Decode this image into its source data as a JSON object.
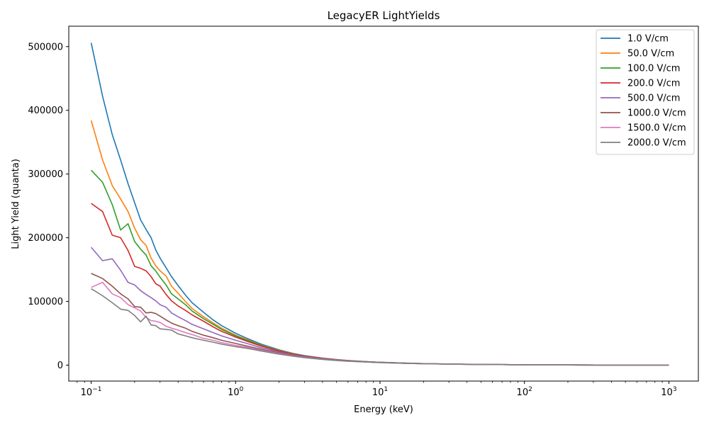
{
  "chart_data": {
    "type": "line",
    "title": "LegacyER LightYields",
    "xlabel": "Energy (keV)",
    "ylabel": "Light Yield (quanta)",
    "x_scale": "log",
    "xlim": [
      0.07,
      1600
    ],
    "ylim": [
      -25000,
      532000
    ],
    "y_ticks": [
      0,
      100000,
      200000,
      300000,
      400000,
      500000
    ],
    "y_tick_labels": [
      "0",
      "100000",
      "200000",
      "300000",
      "400000",
      "500000"
    ],
    "x_ticks": [
      0.1,
      1,
      10,
      100,
      1000
    ],
    "x_tick_labels": [
      {
        "base": "10",
        "exp": "−1"
      },
      {
        "base": "10",
        "exp": "0"
      },
      {
        "base": "10",
        "exp": "1"
      },
      {
        "base": "10",
        "exp": "2"
      },
      {
        "base": "10",
        "exp": "3"
      }
    ],
    "grid": false,
    "legend_position": "top-right",
    "x": [
      0.1,
      0.12,
      0.14,
      0.16,
      0.18,
      0.2,
      0.22,
      0.24,
      0.26,
      0.28,
      0.3,
      0.33,
      0.36,
      0.4,
      0.45,
      0.5,
      0.6,
      0.7,
      0.8,
      1,
      1.2,
      1.5,
      2,
      2.5,
      3,
      4,
      5,
      6,
      8,
      10,
      15,
      20,
      30,
      50,
      100,
      200,
      500,
      1000
    ],
    "series": [
      {
        "name": "1.0 V/cm",
        "color": "#1f77b4",
        "values": [
          506000,
          422000,
          362000,
          322000,
          285000,
          255000,
          228000,
          213000,
          200000,
          181000,
          168000,
          153000,
          139000,
          125000,
          110000,
          98000,
          83000,
          71000,
          62000,
          50000,
          42000,
          33000,
          24000,
          18500,
          15000,
          11000,
          8800,
          7300,
          5600,
          4600,
          3200,
          2500,
          1800,
          1200,
          700,
          380,
          180,
          100
        ]
      },
      {
        "name": "50.0 V/cm",
        "color": "#ff7f0e",
        "values": [
          384000,
          322000,
          282000,
          261000,
          241000,
          215000,
          197000,
          188000,
          168000,
          156000,
          148000,
          140000,
          124000,
          113000,
          100000,
          89000,
          76000,
          66000,
          58000,
          47000,
          40000,
          31500,
          23000,
          18000,
          14500,
          10800,
          8600,
          7100,
          5500,
          4500,
          3100,
          2450,
          1750,
          1150,
          680,
          370,
          175,
          95
        ]
      },
      {
        "name": "100.0 V/cm",
        "color": "#2ca02c",
        "values": [
          306000,
          287000,
          252000,
          212000,
          222000,
          194000,
          182000,
          173000,
          156000,
          148000,
          138000,
          126000,
          112000,
          104000,
          95000,
          85000,
          73000,
          64000,
          56000,
          46000,
          39000,
          31000,
          22500,
          17700,
          14300,
          10700,
          8500,
          7000,
          5450,
          4450,
          3080,
          2430,
          1730,
          1140,
          670,
          365,
          172,
          94
        ]
      },
      {
        "name": "200.0 V/cm",
        "color": "#d62728",
        "values": [
          254000,
          241000,
          204000,
          200000,
          180000,
          155000,
          152000,
          148000,
          139000,
          128000,
          124000,
          111000,
          101000,
          93000,
          86000,
          79000,
          69000,
          60000,
          53000,
          44000,
          37500,
          30000,
          22000,
          17300,
          14000,
          10500,
          8400,
          6900,
          5400,
          4400,
          3050,
          2400,
          1720,
          1130,
          665,
          362,
          170,
          93
        ]
      },
      {
        "name": "500.0 V/cm",
        "color": "#9467bd",
        "values": [
          185000,
          164000,
          167000,
          149000,
          130000,
          126000,
          117000,
          111000,
          106000,
          101000,
          95000,
          91000,
          82000,
          76000,
          70000,
          64000,
          57000,
          51000,
          46000,
          39000,
          34000,
          27500,
          20500,
          16300,
          13300,
          10000,
          8100,
          6700,
          5250,
          4300,
          3000,
          2370,
          1700,
          1120,
          660,
          360,
          169,
          92
        ]
      },
      {
        "name": "1000.0 V/cm",
        "color": "#8c564b",
        "values": [
          144000,
          136000,
          124000,
          112000,
          104000,
          92000,
          91000,
          82000,
          83000,
          81000,
          77000,
          71000,
          66000,
          62000,
          58000,
          53000,
          47000,
          43000,
          39000,
          34000,
          30000,
          25000,
          19000,
          15300,
          12600,
          9600,
          7800,
          6500,
          5100,
          4200,
          2950,
          2340,
          1680,
          1110,
          655,
          358,
          168,
          92
        ]
      },
      {
        "name": "1500.0 V/cm",
        "color": "#e377c2",
        "values": [
          122000,
          130000,
          112000,
          106000,
          95000,
          90000,
          85000,
          75000,
          70000,
          69000,
          67000,
          61000,
          58000,
          55000,
          51000,
          48000,
          42000,
          39000,
          35500,
          31000,
          28000,
          23500,
          18000,
          14600,
          12100,
          9300,
          7600,
          6300,
          5000,
          4100,
          2900,
          2310,
          1660,
          1100,
          650,
          356,
          167,
          91
        ]
      },
      {
        "name": "2000.0 V/cm",
        "color": "#7f7f7f",
        "values": [
          120000,
          109000,
          98000,
          88000,
          86000,
          78000,
          68000,
          77000,
          63000,
          62000,
          57000,
          56000,
          55000,
          49000,
          46000,
          43000,
          39000,
          36000,
          33000,
          29000,
          26500,
          22300,
          17300,
          14100,
          11700,
          9000,
          7400,
          6200,
          4900,
          4050,
          2870,
          2290,
          1650,
          1095,
          648,
          355,
          166,
          91
        ]
      }
    ]
  }
}
